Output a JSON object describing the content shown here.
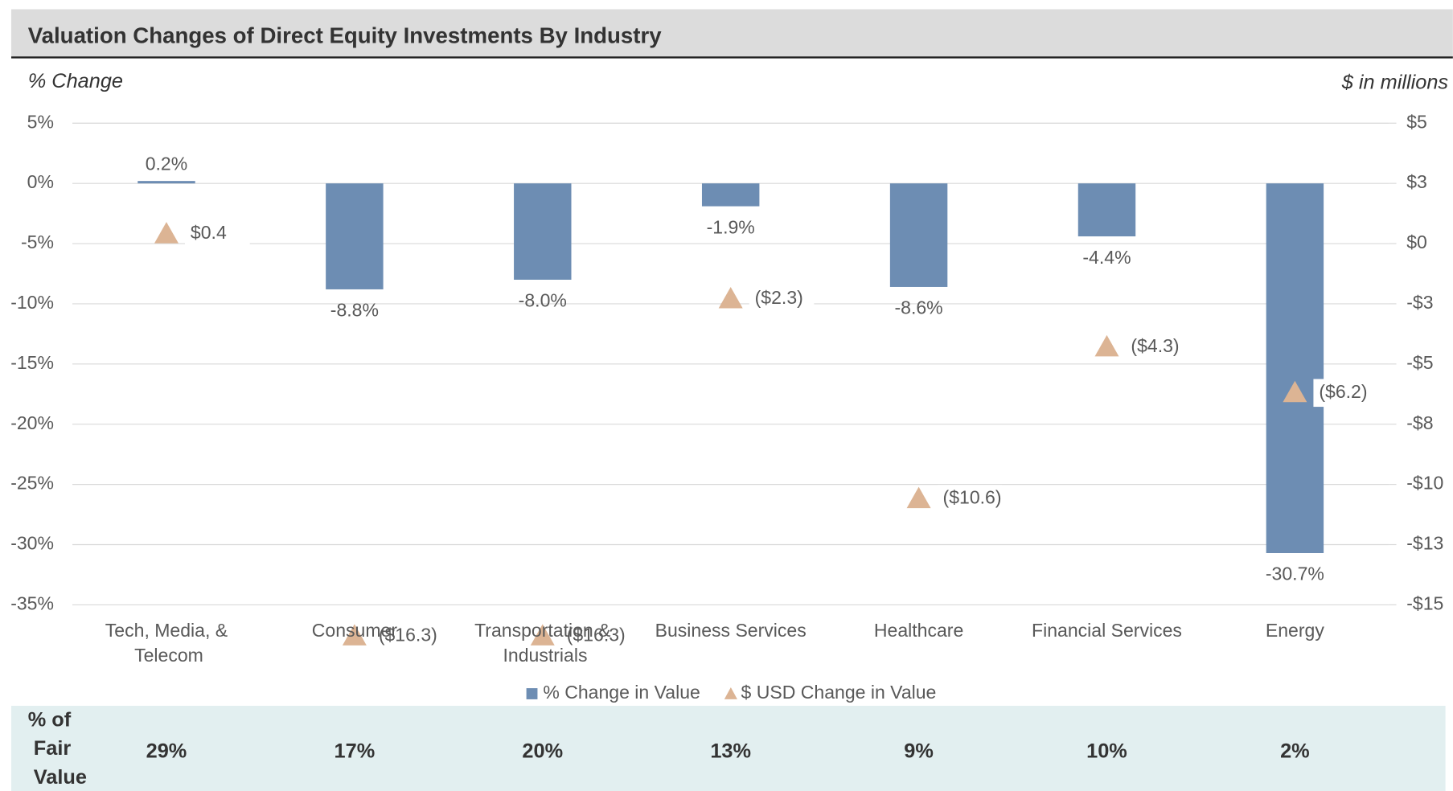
{
  "chart_data": {
    "type": "bar+scatter",
    "title": "Valuation Changes of Direct Equity Investments By Industry",
    "y_label": "% Change",
    "y2_label": "$ in millions",
    "categories": [
      "Tech, Media, & Telecom",
      "Consumer",
      "Transportation & Industrials",
      "Business Services",
      "Healthcare",
      "Financial Services",
      "Energy"
    ],
    "series": [
      {
        "name": "% Change in Value",
        "type": "bar",
        "color": "#6d8db3",
        "values": [
          0.2,
          -8.8,
          -8.0,
          -1.9,
          -8.6,
          -4.4,
          -30.7
        ],
        "value_labels": [
          "0.2%",
          "-8.8%",
          "-8.0%",
          "-1.9%",
          "-8.6%",
          "-4.4%",
          "-30.7%"
        ]
      },
      {
        "name": "$ USD Change in Value",
        "type": "scatter",
        "axis": "y2",
        "color": "#dcb494",
        "values": [
          0.4,
          -16.3,
          -16.3,
          -2.3,
          -10.6,
          -4.3,
          -6.2
        ],
        "value_labels": [
          "$0.4",
          "($16.3)",
          "($16.3)",
          "($2.3)",
          "($10.6)",
          "($4.3)",
          "($6.2)"
        ]
      }
    ],
    "ylim": [
      -35,
      5
    ],
    "yticks": [
      {
        "value": 5,
        "label": "5%"
      },
      {
        "value": 0,
        "label": "0%"
      },
      {
        "value": -5,
        "label": "-5%"
      },
      {
        "value": -10,
        "label": "-10%"
      },
      {
        "value": -15,
        "label": "-15%"
      },
      {
        "value": -20,
        "label": "-20%"
      },
      {
        "value": -25,
        "label": "-25%"
      },
      {
        "value": -30,
        "label": "-30%"
      },
      {
        "value": -35,
        "label": "-35%"
      }
    ],
    "y2lim": [
      -15,
      5
    ],
    "y2ticks": [
      {
        "value": 5,
        "label": "$5"
      },
      {
        "value": 2.5,
        "label": "$3"
      },
      {
        "value": 0,
        "label": "$0"
      },
      {
        "value": -2.5,
        "label": "-$3"
      },
      {
        "value": -5,
        "label": "-$5"
      },
      {
        "value": -7.5,
        "label": "-$8"
      },
      {
        "value": -10,
        "label": "-$10"
      },
      {
        "value": -12.5,
        "label": "-$13"
      },
      {
        "value": -15,
        "label": "-$15"
      }
    ],
    "grid": true,
    "legend": "bottom"
  },
  "table": {
    "label": "% of Fair Value",
    "values": [
      "29%",
      "17%",
      "20%",
      "13%",
      "9%",
      "10%",
      "2%"
    ]
  }
}
